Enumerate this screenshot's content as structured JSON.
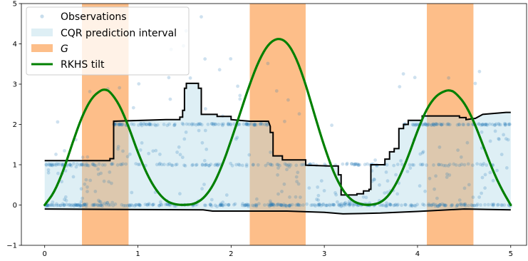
{
  "chart_data": {
    "type": "scatter",
    "xlim": [
      -0.25,
      5.17
    ],
    "ylim": [
      -1,
      5
    ],
    "x_ticks": [
      "0",
      "1",
      "2",
      "3",
      "4",
      "5"
    ],
    "y_ticks": [
      "−1",
      "0",
      "1",
      "2",
      "3",
      "4",
      "5"
    ],
    "grid": false,
    "legend_position": "top-left",
    "legend": {
      "observations": "Observations",
      "interval": "CQR prediction interval",
      "group": "G",
      "tilt": "RKHS tilt"
    },
    "colors": {
      "observations": "#1f77b4",
      "interval": "#add8e6",
      "group": "#fdae6b",
      "tilt": "#008000",
      "bounds": "#000000"
    },
    "group_bands": [
      [
        0.4,
        0.9
      ],
      [
        2.2,
        2.8
      ],
      [
        4.1,
        4.6
      ]
    ],
    "rkhs_tilt": {
      "x": [
        0,
        0.1,
        0.2,
        0.3,
        0.4,
        0.5,
        0.6,
        0.65,
        0.7,
        0.8,
        0.9,
        1.0,
        1.1,
        1.2,
        1.3,
        1.4,
        1.5,
        1.6,
        1.7,
        1.8,
        1.9,
        2.0,
        2.1,
        2.2,
        2.3,
        2.4,
        2.5,
        2.6,
        2.7,
        2.8,
        2.9,
        3.0,
        3.1,
        3.2,
        3.3,
        3.4,
        3.5,
        3.6,
        3.7,
        3.8,
        3.9,
        4.0,
        4.1,
        4.2,
        4.3,
        4.35,
        4.4,
        4.5,
        4.6,
        4.7,
        4.8,
        4.9,
        5.0
      ],
      "y": [
        0.0,
        0.3,
        0.85,
        1.55,
        2.2,
        2.65,
        2.85,
        2.87,
        2.82,
        2.5,
        1.95,
        1.3,
        0.75,
        0.35,
        0.1,
        0.01,
        0.0,
        0.02,
        0.15,
        0.45,
        0.95,
        1.6,
        2.3,
        3.0,
        3.6,
        4.0,
        4.15,
        4.05,
        3.65,
        3.0,
        2.2,
        1.45,
        0.8,
        0.35,
        0.1,
        0.01,
        0.0,
        0.05,
        0.25,
        0.65,
        1.2,
        1.85,
        2.4,
        2.72,
        2.84,
        2.85,
        2.8,
        2.55,
        2.1,
        1.5,
        0.9,
        0.4,
        0.0
      ]
    },
    "cqr_upper": {
      "x": [
        0,
        0.7,
        0.7,
        0.74,
        0.74,
        1.3,
        1.45,
        1.45,
        1.48,
        1.48,
        1.5,
        1.5,
        1.52,
        1.52,
        1.65,
        1.65,
        1.68,
        1.68,
        1.85,
        1.85,
        2.0,
        2.0,
        2.2,
        2.4,
        2.42,
        2.42,
        2.45,
        2.45,
        2.55,
        2.55,
        2.8,
        2.8,
        3.05,
        3.15,
        3.15,
        3.18,
        3.18,
        3.35,
        3.35,
        3.42,
        3.42,
        3.48,
        3.48,
        3.5,
        3.5,
        3.65,
        3.65,
        3.7,
        3.7,
        3.75,
        3.75,
        3.8,
        3.8,
        3.85,
        3.85,
        3.9,
        3.9,
        4.05,
        4.05,
        4.45,
        4.45,
        4.52,
        4.52,
        4.62,
        4.7,
        4.7,
        4.95,
        5.0
      ],
      "y": [
        1.1,
        1.1,
        1.15,
        1.15,
        2.08,
        2.12,
        2.12,
        2.18,
        2.18,
        2.35,
        2.35,
        2.9,
        2.9,
        3.02,
        3.02,
        2.9,
        2.9,
        2.25,
        2.25,
        2.2,
        2.2,
        2.12,
        2.08,
        2.08,
        1.95,
        1.8,
        1.8,
        1.22,
        1.22,
        1.12,
        1.12,
        0.99,
        0.97,
        0.97,
        0.75,
        0.75,
        0.25,
        0.25,
        0.28,
        0.28,
        0.35,
        0.35,
        0.39,
        0.39,
        1.0,
        1.0,
        1.14,
        1.14,
        1.32,
        1.32,
        1.4,
        1.4,
        1.9,
        1.9,
        2.0,
        2.0,
        2.1,
        2.1,
        2.21,
        2.21,
        2.17,
        2.17,
        2.12,
        2.15,
        2.25,
        2.25,
        2.3,
        2.3
      ]
    },
    "cqr_lower": {
      "x": [
        0,
        1.7,
        1.8,
        2.0,
        2.6,
        3.0,
        3.2,
        3.6,
        4.0,
        4.5,
        5.0
      ],
      "y": [
        -0.1,
        -0.12,
        -0.15,
        -0.15,
        -0.15,
        -0.18,
        -0.22,
        -0.2,
        -0.16,
        -0.1,
        -0.12
      ]
    }
  }
}
